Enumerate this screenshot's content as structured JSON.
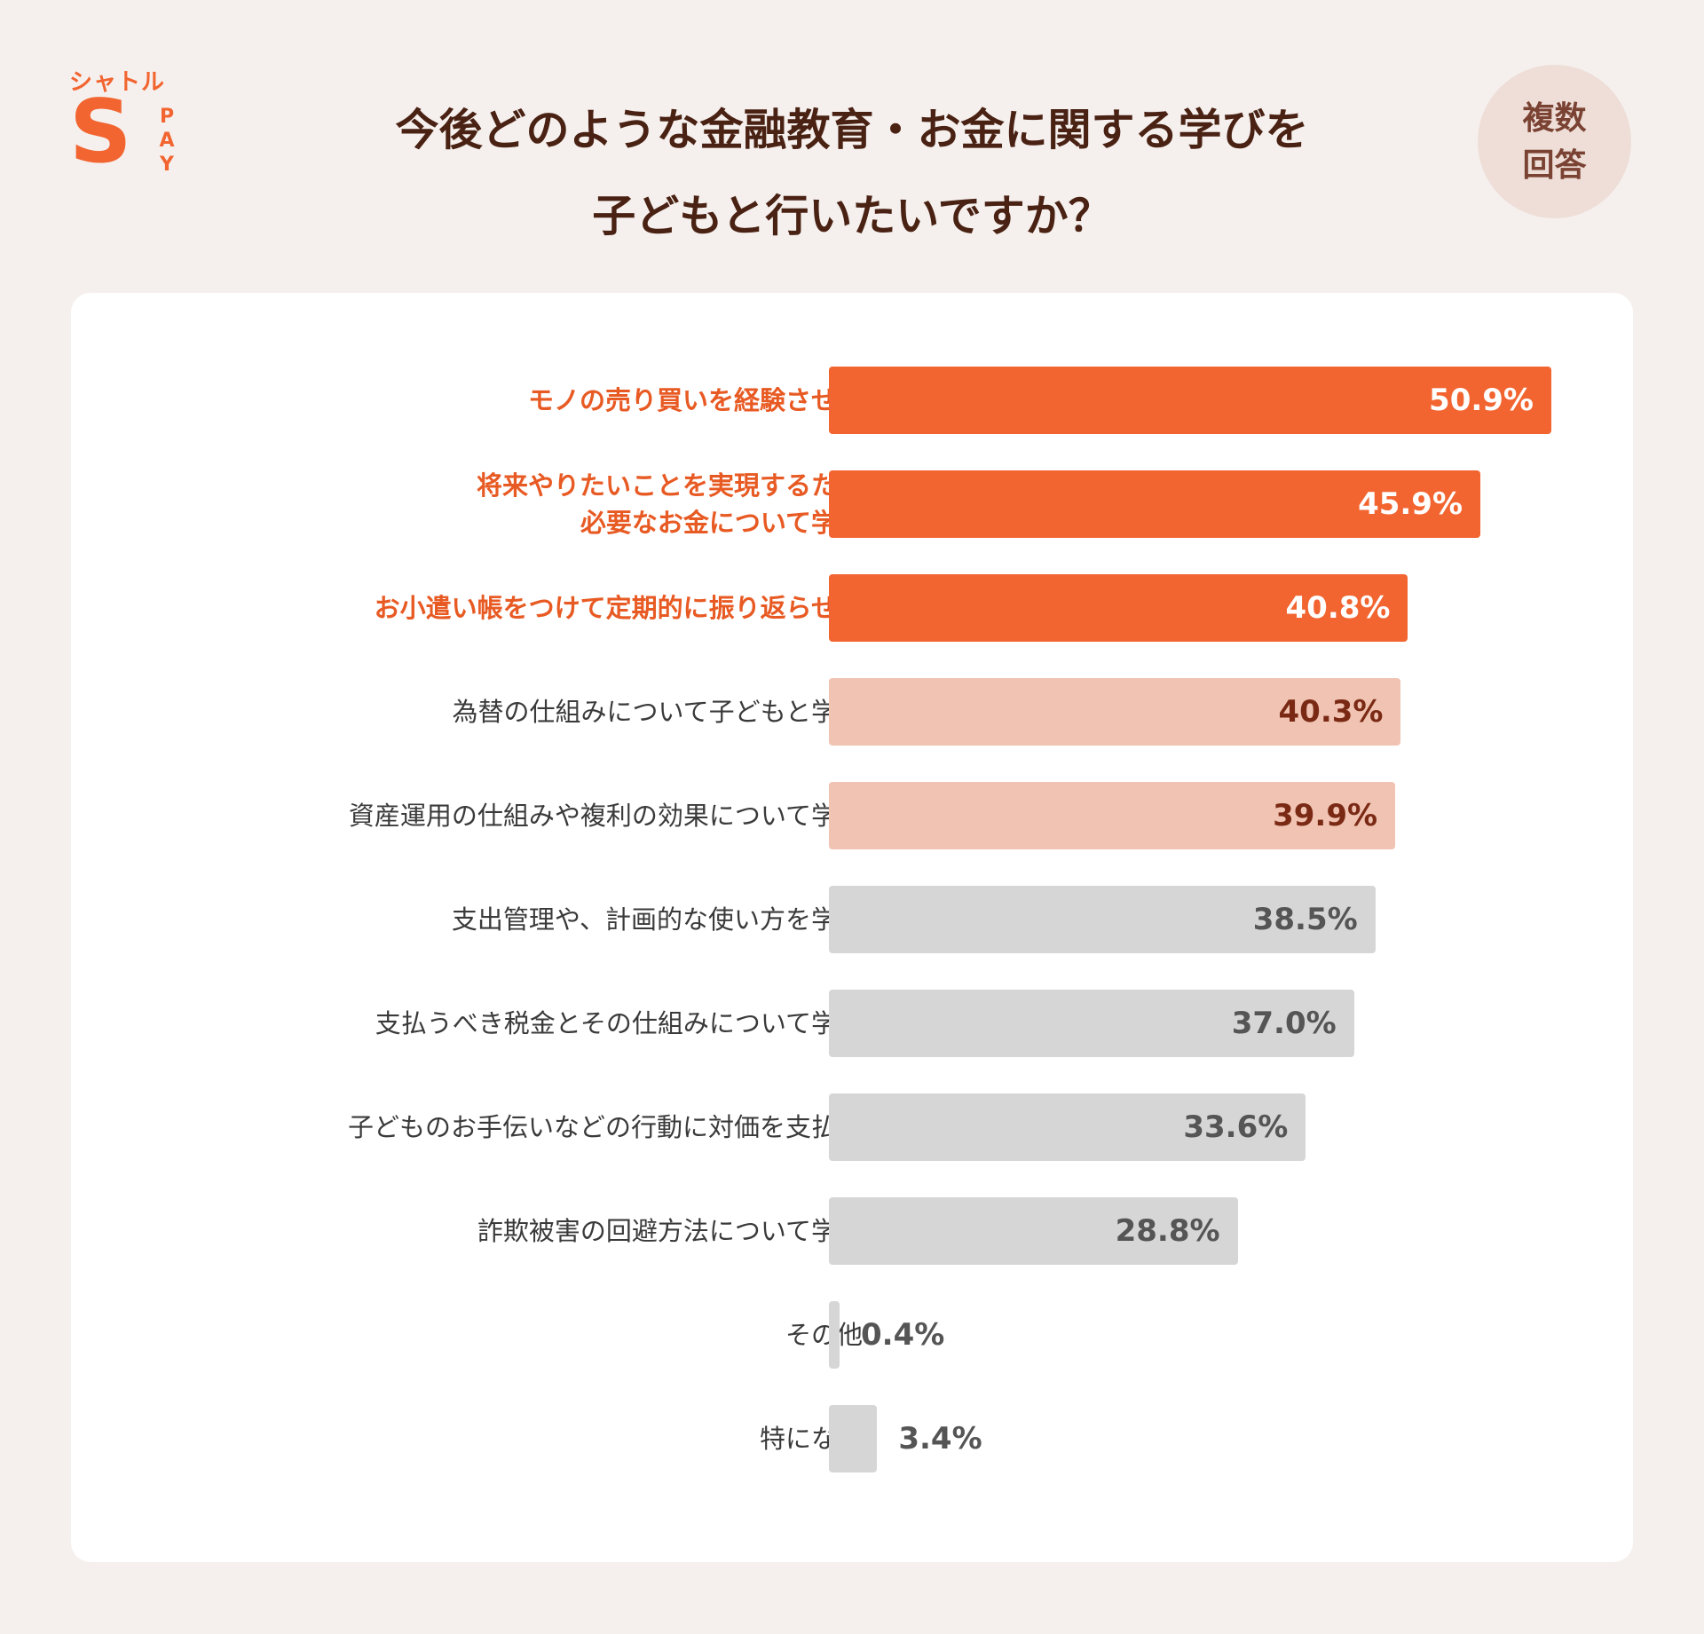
{
  "logo": {
    "name": "シャトル",
    "mark": "S",
    "pay": "PAY"
  },
  "header": {
    "title_line1": "今後どのような金融教育・お金に関する学びを",
    "title_line2": "子どもと行いたいですか？",
    "badge_line1": "複数",
    "badge_line2": "回答"
  },
  "colors": {
    "accent": "#f26430",
    "highlight_label": "#e85a23",
    "mid_bar": "#f0c3b3",
    "mid_value": "#7a2a14",
    "low_bar": "#d6d6d6",
    "low_value": "#555555",
    "top_value": "#ffffff",
    "plain_label": "#3a3a3a"
  },
  "chart_data": {
    "type": "bar",
    "orientation": "horizontal",
    "title": "今後どのような金融教育・お金に関する学びを子どもと行いたいですか？",
    "note": "複数回答",
    "unit": "%",
    "categories": [
      "モノの売り買いを経験させる",
      "将来やりたいことを実現するため\n必要なお金について学ぶ",
      "お小遣い帳をつけて定期的に振り返らせる",
      "為替の仕組みについて子どもと学ぶ",
      "資産運用の仕組みや複利の効果について学ぶ",
      "支出管理や、計画的な使い方を学ぶ",
      "支払うべき税金とその仕組みについて学ぶ",
      "子どものお手伝いなどの行動に対価を支払う",
      "詐欺被害の回避方法について学ぶ",
      "その他",
      "特にない"
    ],
    "values": [
      50.9,
      45.9,
      40.8,
      40.3,
      39.9,
      38.5,
      37.0,
      33.6,
      28.8,
      0.4,
      3.4
    ],
    "labels": [
      "50.9%",
      "45.9%",
      "40.8%",
      "40.3%",
      "39.9%",
      "38.5%",
      "37.0%",
      "33.6%",
      "28.8%",
      "0.4%",
      "3.4%"
    ],
    "tiers": [
      "top",
      "top",
      "top",
      "mid",
      "mid",
      "low",
      "low",
      "low",
      "low",
      "low",
      "low"
    ],
    "xlim": [
      0,
      50.9
    ]
  }
}
